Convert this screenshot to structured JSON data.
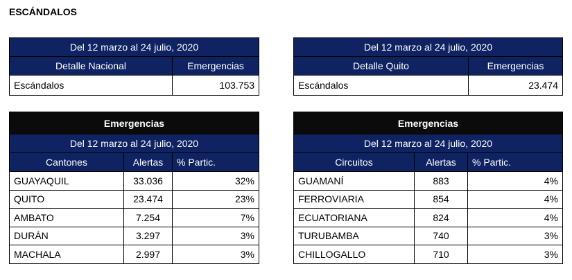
{
  "title": "ESCÁNDALOS",
  "colors": {
    "header_navy": "#0f2363",
    "header_black": "#0b0b0b"
  },
  "national": {
    "period": "Del 12 marzo al 24 julio, 2020",
    "col1": "Detalle Nacional",
    "col2": "Emergencias",
    "row": {
      "label": "Escándalos",
      "value": "103.753"
    }
  },
  "quito": {
    "period": "Del 12 marzo al 24 julio, 2020",
    "col1": "Detalle Quito",
    "col2": "Emergencias",
    "row": {
      "label": "Escándalos",
      "value": "23.474"
    }
  },
  "cantones": {
    "title": "Emergencias",
    "period": "Del 12 marzo al 24 julio, 2020",
    "headers": [
      "Cantones",
      "Alertas",
      "% Partic."
    ],
    "rows": [
      [
        "GUAYAQUIL",
        "33.036",
        "32%"
      ],
      [
        "QUITO",
        "23.474",
        "23%"
      ],
      [
        "AMBATO",
        "7.254",
        "7%"
      ],
      [
        "DURÁN",
        "3.297",
        "3%"
      ],
      [
        "MACHALA",
        "2.997",
        "3%"
      ]
    ]
  },
  "circuitos": {
    "title": "Emergencias",
    "period": "Del 12 marzo al 24 julio, 2020",
    "headers": [
      "Circuitos",
      "Alertas",
      "% Partic."
    ],
    "rows": [
      [
        "GUAMANÍ",
        "883",
        "4%"
      ],
      [
        "FERROVIARIA",
        "854",
        "4%"
      ],
      [
        "ECUATORIANA",
        "824",
        "4%"
      ],
      [
        "TURUBAMBA",
        "740",
        "3%"
      ],
      [
        "CHILLOGALLO",
        "710",
        "3%"
      ]
    ]
  }
}
